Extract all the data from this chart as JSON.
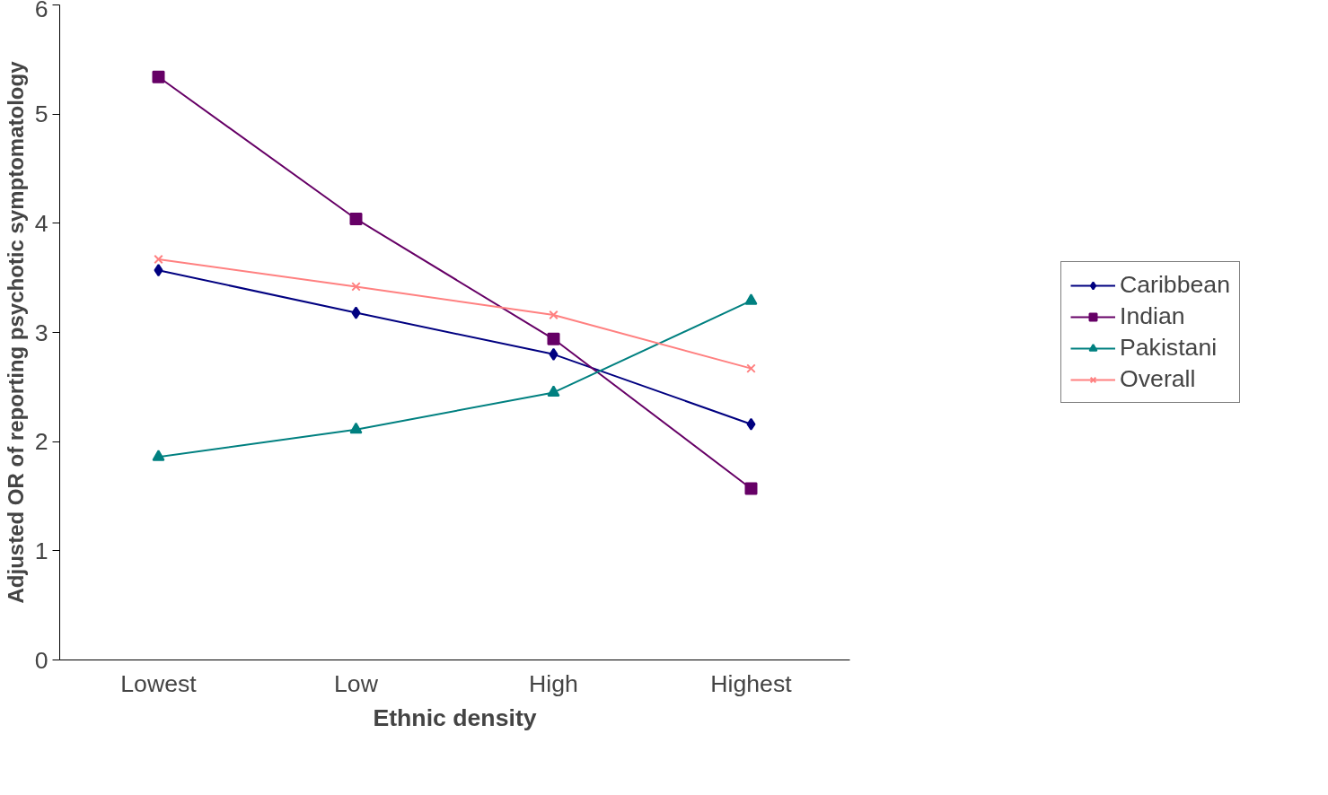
{
  "chart_data": {
    "type": "line",
    "xlabel": "Ethnic density",
    "ylabel": "Adjusted OR of reporting psychotic symptomatology",
    "categories": [
      "Lowest",
      "Low",
      "High",
      "Highest"
    ],
    "series": [
      {
        "name": "Caribbean",
        "color": "#000080",
        "marker": "diamond",
        "values": [
          3.57,
          3.18,
          2.8,
          2.16
        ]
      },
      {
        "name": "Indian",
        "color": "#660066",
        "marker": "square",
        "values": [
          5.34,
          4.04,
          2.94,
          1.57
        ]
      },
      {
        "name": "Pakistani",
        "color": "#008080",
        "marker": "triangle",
        "values": [
          1.86,
          2.11,
          2.45,
          3.29
        ]
      },
      {
        "name": "Overall",
        "color": "#ff8080",
        "marker": "cross",
        "values": [
          3.67,
          3.42,
          3.16,
          2.67
        ]
      }
    ],
    "ylim": [
      0,
      6
    ],
    "yticks": [
      0,
      1,
      2,
      3,
      4,
      5,
      6
    ],
    "grid": false,
    "legend": "right",
    "line_style": "solid"
  }
}
